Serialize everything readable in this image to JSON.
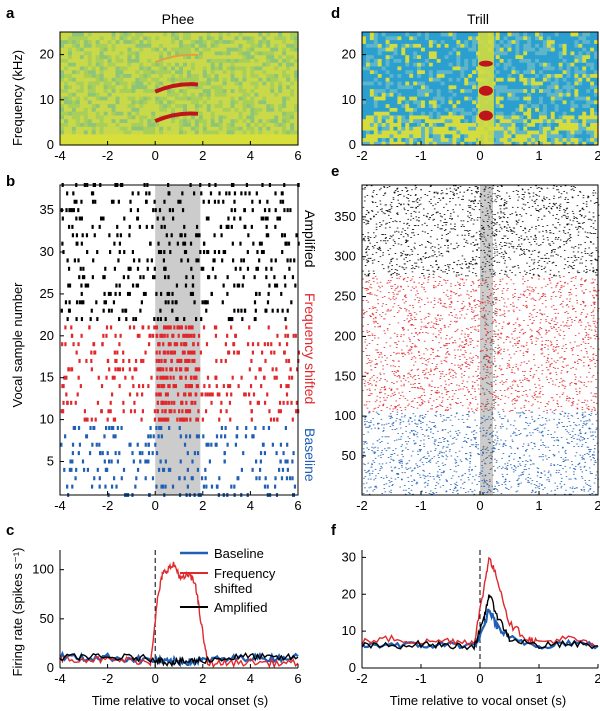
{
  "panels": {
    "a": {
      "label": "a",
      "title": "Phee"
    },
    "b": {
      "label": "b"
    },
    "c": {
      "label": "c"
    },
    "d": {
      "label": "d",
      "title": "Trill"
    },
    "e": {
      "label": "e"
    },
    "f": {
      "label": "f"
    }
  },
  "raster_labels": {
    "amplified": "Amplified",
    "frequency_shifted": "Frequency shifted",
    "baseline": "Baseline"
  },
  "legend": {
    "baseline": "Baseline",
    "frequency_shifted_line1": "Frequency",
    "frequency_shifted_line2": "shifted",
    "amplified": "Amplified"
  },
  "colors": {
    "baseline": "#1f5fb4",
    "frequency_shifted": "#e0292d",
    "amplified": "#000000",
    "onset_shading": "#c8c8c8"
  },
  "chart_data": [
    {
      "panel": "a",
      "type": "heatmap",
      "title": "Phee",
      "ylabel": "Frequency (kHz)",
      "xlim": [
        -4,
        6
      ],
      "ylim": [
        0,
        25
      ],
      "x_ticks": [
        "-4",
        "-2",
        "0",
        "2",
        "4",
        "6"
      ],
      "y_ticks": [
        "0",
        "10",
        "20"
      ],
      "harmonics_khz": [
        6.5,
        13,
        19.5
      ],
      "call_window_s": [
        0,
        1.8
      ]
    },
    {
      "panel": "b",
      "type": "scatter",
      "ylabel": "Vocal sample number",
      "xlim": [
        -4,
        6
      ],
      "ylim": [
        1,
        38
      ],
      "x_ticks": [
        "-4",
        "-2",
        "0",
        "2",
        "4",
        "6"
      ],
      "y_ticks": [
        "5",
        "10",
        "15",
        "20",
        "25",
        "30",
        "35"
      ],
      "groups": [
        {
          "name": "Baseline",
          "trials": [
            1,
            9
          ],
          "color": "#1f5fb4"
        },
        {
          "name": "Frequency shifted",
          "trials": [
            10,
            21
          ],
          "color": "#e0292d"
        },
        {
          "name": "Amplified",
          "trials": [
            22,
            38
          ],
          "color": "#000000"
        }
      ]
    },
    {
      "panel": "c",
      "type": "line",
      "xlabel": "Time relative to vocal onset (s)",
      "ylabel": "Firing rate (spikes s⁻¹)",
      "xlim": [
        -4,
        6
      ],
      "ylim": [
        0,
        120
      ],
      "x_ticks": [
        "-4",
        "-2",
        "0",
        "2",
        "4",
        "6"
      ],
      "y_ticks": [
        "0",
        "50",
        "100"
      ],
      "series": [
        {
          "name": "Baseline",
          "color": "#1f5fb4",
          "x": [
            -4,
            -3,
            -2,
            -1,
            0,
            0.5,
            1,
            1.5,
            2,
            3,
            4,
            5,
            6
          ],
          "y": [
            12,
            10,
            11,
            9,
            8,
            6,
            7,
            6,
            8,
            9,
            11,
            10,
            12
          ]
        },
        {
          "name": "Frequency shifted",
          "color": "#e0292d",
          "x": [
            -4,
            -3,
            -2,
            -1,
            -0.2,
            0.1,
            0.3,
            0.5,
            0.8,
            1.1,
            1.4,
            1.7,
            1.9,
            2.2,
            3,
            4,
            5,
            6
          ],
          "y": [
            10,
            9,
            8,
            8,
            6,
            70,
            95,
            100,
            105,
            90,
            95,
            85,
            50,
            5,
            5,
            6,
            5,
            5
          ]
        },
        {
          "name": "Amplified",
          "color": "#000000",
          "x": [
            -4,
            -3,
            -2,
            -1,
            0,
            0.5,
            1,
            1.5,
            2,
            3,
            4,
            5,
            6
          ],
          "y": [
            10,
            12,
            10,
            11,
            9,
            6,
            6,
            7,
            8,
            10,
            12,
            10,
            11
          ]
        }
      ]
    },
    {
      "panel": "d",
      "type": "heatmap",
      "title": "Trill",
      "xlim": [
        -2,
        2
      ],
      "ylim": [
        0,
        25
      ],
      "x_ticks": [
        "-2",
        "-1",
        "0",
        "1",
        "2"
      ],
      "y_ticks": [
        "0",
        "10",
        "20"
      ]
    },
    {
      "panel": "e",
      "type": "scatter",
      "xlim": [
        -2,
        2
      ],
      "ylim": [
        1,
        390
      ],
      "x_ticks": [
        "-2",
        "-1",
        "0",
        "1",
        "2"
      ],
      "y_ticks": [
        "50",
        "100",
        "150",
        "200",
        "250",
        "300",
        "350"
      ],
      "groups": [
        {
          "name": "Baseline",
          "trials": [
            1,
            105
          ],
          "color": "#1f5fb4"
        },
        {
          "name": "Frequency shifted",
          "trials": [
            106,
            275
          ],
          "color": "#e0292d"
        },
        {
          "name": "Amplified",
          "trials": [
            276,
            390
          ],
          "color": "#000000"
        }
      ]
    },
    {
      "panel": "f",
      "type": "line",
      "xlabel": "Time relative to vocal onset (s)",
      "xlim": [
        -2,
        2
      ],
      "ylim": [
        0,
        32
      ],
      "x_ticks": [
        "-2",
        "-1",
        "0",
        "1",
        "2"
      ],
      "y_ticks": [
        "0",
        "10",
        "20",
        "30"
      ],
      "series": [
        {
          "name": "Baseline",
          "color": "#1f5fb4",
          "x": [
            -2,
            -1.5,
            -1,
            -0.5,
            -0.1,
            0.05,
            0.15,
            0.3,
            0.5,
            1,
            1.5,
            2
          ],
          "y": [
            6,
            6.5,
            6,
            6.5,
            6,
            10,
            16,
            11,
            8,
            6,
            7,
            6
          ]
        },
        {
          "name": "Frequency shifted",
          "color": "#e0292d",
          "x": [
            -2,
            -1.5,
            -1,
            -0.5,
            -0.1,
            0.05,
            0.15,
            0.3,
            0.5,
            0.8,
            1,
            1.5,
            2
          ],
          "y": [
            7,
            8,
            7,
            7.5,
            7,
            20,
            30,
            24,
            12,
            8,
            7,
            8,
            6
          ]
        },
        {
          "name": "Amplified",
          "color": "#000000",
          "x": [
            -2,
            -1.5,
            -1,
            -0.5,
            -0.1,
            0.05,
            0.15,
            0.3,
            0.5,
            1,
            1.5,
            2
          ],
          "y": [
            6,
            6,
            6.5,
            6,
            6,
            12,
            20,
            14,
            8,
            6,
            6.5,
            6
          ]
        }
      ]
    }
  ]
}
